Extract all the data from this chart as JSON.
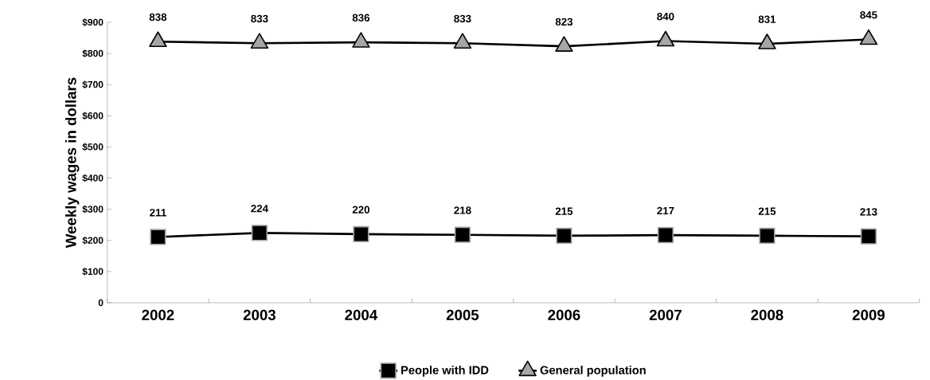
{
  "chart_data": {
    "type": "line",
    "ylabel": "Weekly wages in dollars",
    "categories": [
      "2002",
      "2003",
      "2004",
      "2005",
      "2006",
      "2007",
      "2008",
      "2009"
    ],
    "series": [
      {
        "name": "People with IDD",
        "color": "#000000",
        "marker": "square",
        "values": [
          211,
          224,
          220,
          218,
          215,
          217,
          215,
          213
        ]
      },
      {
        "name": "General population",
        "color": "#a6a6a6",
        "marker": "triangle",
        "values": [
          838,
          833,
          836,
          833,
          823,
          840,
          831,
          845
        ]
      }
    ],
    "ylim": [
      0,
      900
    ],
    "yticks": [
      0,
      {
        "value": 100,
        "label": "$100"
      },
      {
        "value": 200,
        "label": "$200"
      },
      {
        "value": 300,
        "label": "$300"
      },
      {
        "value": 400,
        "label": "$400"
      },
      {
        "value": 500,
        "label": "$500"
      },
      {
        "value": 600,
        "label": "$600"
      },
      {
        "value": 700,
        "label": "$700"
      },
      {
        "value": 800,
        "label": "$800"
      },
      {
        "value": 900,
        "label": "$900"
      }
    ],
    "data_labels": true,
    "grid": false,
    "legend": "bottom",
    "line_style": "solid"
  }
}
